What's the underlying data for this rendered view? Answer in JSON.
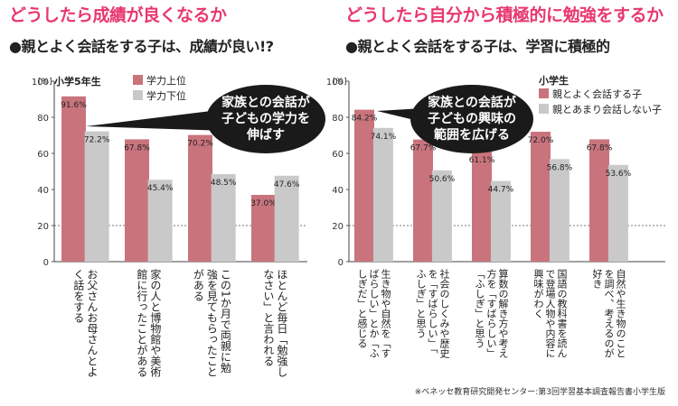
{
  "colors": {
    "series1": "#c9747d",
    "series2": "#c9c9c9",
    "heading": "#e8386e",
    "bubble": "#1a1a1a"
  },
  "source_note": "※ベネッセ教育研究開発センター:第3回学習基本調査報告書小学生版",
  "chart_data": [
    {
      "type": "bar",
      "title": "どうしたら成績が良くなるか",
      "subtitle": "●親とよく会話をする子は、成績が良い!?",
      "ylabel": "[%]",
      "ylim": [
        0,
        100
      ],
      "yticks": [
        0,
        20,
        40,
        60,
        80,
        100
      ],
      "group_label": "小学5年生",
      "categories": [
        "お父さんお母さんとよく話をする",
        "家の人と博物館や美術館に行ったことがある",
        "この1か月で両親に勉強を見てもらったことがある",
        "ほとんど毎日「勉強しなさい」と言われる"
      ],
      "series": [
        {
          "name": "学力上位",
          "values": [
            91.6,
            67.8,
            70.2,
            37.0
          ],
          "labels": [
            "91.6%",
            "67.8%",
            "70.2%",
            "37.0%"
          ]
        },
        {
          "name": "学力下位",
          "values": [
            72.2,
            45.4,
            48.5,
            47.6
          ],
          "labels": [
            "72.2%",
            "45.4%",
            "48.5%",
            "47.6%"
          ]
        }
      ],
      "callout": [
        "家族との会話が",
        "子どもの学力を",
        "伸ばす"
      ]
    },
    {
      "type": "bar",
      "title": "どうしたら自分から積極的に勉強をするか",
      "subtitle": "●親とよく会話をする子は、学習に積極的",
      "ylabel": "[%]",
      "ylim": [
        0,
        100
      ],
      "yticks": [
        0,
        20,
        40,
        60,
        80,
        100
      ],
      "group_label": "小学生",
      "categories": [
        "生き物や自然を「すばらしい」とか「ふしぎだ」と感じる",
        "社会のしくみや歴史を「すばらしい」「ふしぎ」と思う",
        "算数の解き方や考え方を「すばらしい」「ふしぎ」と思う",
        "国語の教科書を読んで登場人物や内容に興味がわく",
        "自然や生き物のことを調べ、考えるのが好き"
      ],
      "series": [
        {
          "name": "親とよく会話する子",
          "values": [
            84.2,
            67.7,
            61.1,
            72.0,
            67.8
          ],
          "labels": [
            "84.2%",
            "67.7%",
            "61.1%",
            "72.0%",
            "67.8%"
          ]
        },
        {
          "name": "親とあまり会話しない子",
          "values": [
            74.1,
            50.6,
            44.7,
            56.8,
            53.6
          ],
          "labels": [
            "74.1%",
            "50.6%",
            "44.7%",
            "56.8%",
            "53.6%"
          ]
        }
      ],
      "callout": [
        "家族との会話が",
        "子どもの興味の",
        "範囲を広げる"
      ]
    }
  ]
}
